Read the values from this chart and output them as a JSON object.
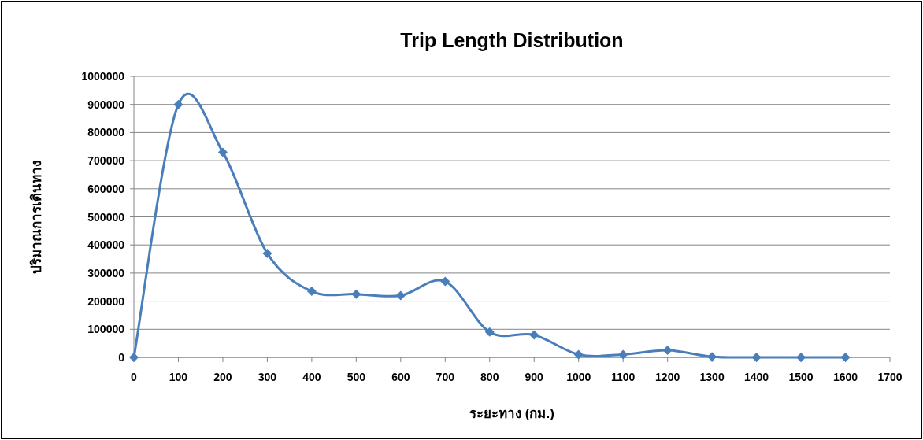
{
  "chart_data": {
    "type": "line",
    "title": "Trip Length Distribution",
    "xlabel": "ระยะทาง (กม.)",
    "ylabel": "ปริมาณการเดินทาง",
    "x": [
      0,
      100,
      200,
      300,
      400,
      500,
      600,
      700,
      800,
      900,
      1000,
      1100,
      1200,
      1300,
      1400,
      1500,
      1600
    ],
    "series": [
      {
        "color": "#4a7ebb",
        "values": [
          0,
          900000,
          730000,
          370000,
          235000,
          225000,
          220000,
          270000,
          90000,
          80000,
          10000,
          10000,
          25000,
          2000,
          0,
          0,
          0
        ]
      }
    ],
    "xlim": [
      0,
      1700
    ],
    "xticks": [
      0,
      100,
      200,
      300,
      400,
      500,
      600,
      700,
      800,
      900,
      1000,
      1100,
      1200,
      1300,
      1400,
      1500,
      1600,
      1700
    ],
    "ylim": [
      0,
      1000000
    ],
    "yticks": [
      0,
      100000,
      200000,
      300000,
      400000,
      500000,
      600000,
      700000,
      800000,
      900000,
      1000000
    ],
    "grid": "y",
    "marker": "diamond",
    "line_style": "solid"
  }
}
